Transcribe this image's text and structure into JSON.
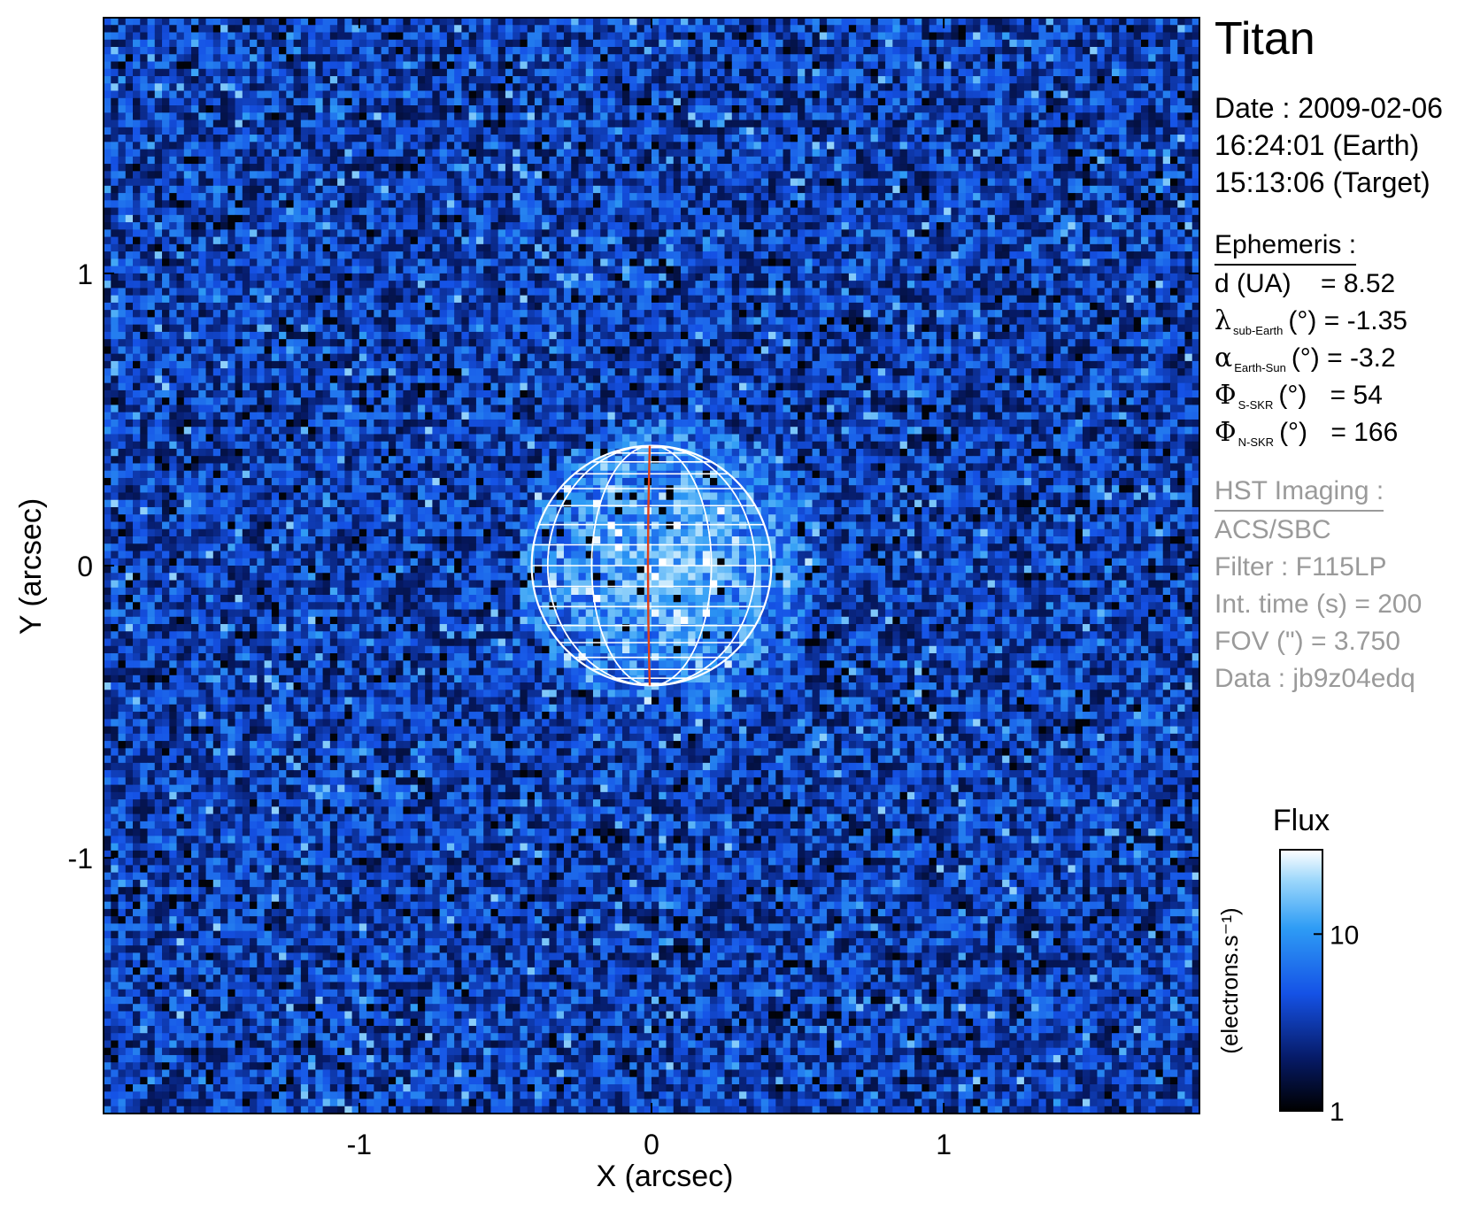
{
  "plot": {
    "xlabel": "X (arcsec)",
    "ylabel": "Y (arcsec)",
    "xlim": [
      -1.875,
      1.875
    ],
    "ylim": [
      -1.875,
      1.875
    ],
    "xticks": [
      "-1",
      "0",
      "1"
    ],
    "yticks": [
      "1",
      "0",
      "-1"
    ],
    "xtick_values": [
      -1,
      0,
      1
    ],
    "ytick_values": [
      1,
      0,
      -1
    ],
    "planet_radius_arcsec": 0.41,
    "grid_color": "#ffffff",
    "meridian_color": "#e0401a"
  },
  "info": {
    "target": "Titan",
    "date_line": "Date : 2009-02-06",
    "earth_time": "16:24:01 (Earth)",
    "target_time": "15:13:06 (Target)",
    "ephemeris_header": "Ephemeris :",
    "ephemeris": [
      {
        "label": "d (UA)",
        "value": "= 8.52"
      },
      {
        "symbol": "λ",
        "subscript": "sub-Earth",
        "unit": "(°)",
        "value": "= -1.35"
      },
      {
        "symbol": "α",
        "subscript": "Earth-Sun",
        "unit": "(°)",
        "value": "= -3.2"
      },
      {
        "symbol": "Φ",
        "subscript": "S-SKR",
        "unit": "(°)",
        "value": "= 54"
      },
      {
        "symbol": "Φ",
        "subscript": "N-SKR",
        "unit": "(°)",
        "value": "= 166"
      }
    ],
    "hst_header": "HST Imaging :",
    "hst": [
      "ACS/SBC",
      "Filter : F115LP",
      "Int. time (s) = 200",
      "FOV (\") = 3.750",
      "Data : jb9z04edq"
    ]
  },
  "colorbar": {
    "title": "Flux",
    "label": "(electrons.s⁻¹)",
    "ticks": [
      "10",
      "1"
    ],
    "tick_values": [
      10,
      1
    ],
    "range": [
      1,
      30
    ],
    "scale": "log",
    "colors": [
      "#000000",
      "#061a66",
      "#1552e6",
      "#2e9cf5",
      "#9ad6fb",
      "#ffffff"
    ]
  }
}
